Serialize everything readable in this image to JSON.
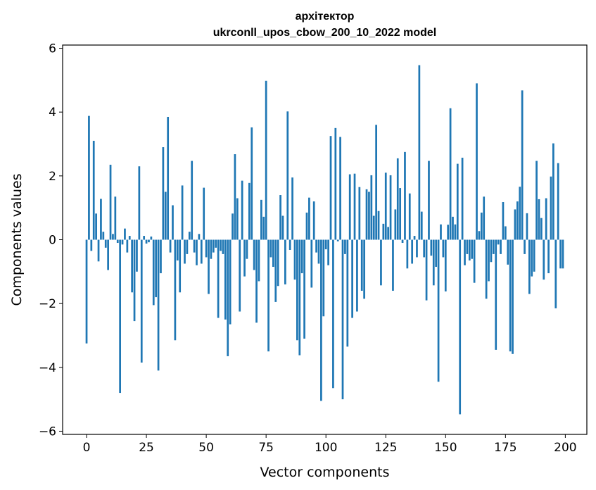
{
  "chart_data": {
    "type": "bar",
    "title": "архітектор",
    "subtitle": "ukrconll_upos_cbow_200_10_2022 model",
    "xlabel": "Vector components",
    "ylabel": "Components values",
    "xlim": [
      -10,
      209
    ],
    "ylim": [
      -6.1,
      6.1
    ],
    "xticks": [
      0,
      25,
      50,
      75,
      100,
      125,
      150,
      175,
      200
    ],
    "yticks": [
      -6,
      -4,
      -2,
      0,
      2,
      4,
      6
    ],
    "ytick_labels": [
      "−6",
      "−4",
      "−2",
      "0",
      "2",
      "4",
      "6"
    ],
    "bar_color": "#1f77b4",
    "values": [
      -3.25,
      3.88,
      -0.35,
      3.1,
      0.82,
      -0.68,
      1.28,
      0.25,
      -0.25,
      -0.95,
      2.35,
      0.18,
      1.35,
      -0.1,
      -4.8,
      -0.15,
      0.35,
      -0.4,
      0.12,
      -1.65,
      -2.55,
      -1.0,
      2.3,
      -3.85,
      0.12,
      -0.12,
      -0.08,
      0.1,
      -2.05,
      -1.8,
      -4.1,
      -1.05,
      2.9,
      1.5,
      3.85,
      -0.4,
      1.08,
      -3.15,
      -0.65,
      -1.65,
      1.7,
      -0.75,
      -0.45,
      0.25,
      2.47,
      -0.4,
      -0.8,
      0.18,
      -0.75,
      1.63,
      -0.55,
      -1.7,
      -0.6,
      -0.4,
      -0.25,
      -2.45,
      -0.35,
      -0.45,
      -2.5,
      -3.65,
      -2.65,
      0.82,
      2.68,
      1.3,
      -2.25,
      1.85,
      -1.15,
      -0.6,
      1.78,
      3.52,
      -0.95,
      -2.6,
      -1.3,
      1.25,
      0.72,
      4.98,
      -3.5,
      -0.55,
      -0.85,
      -1.95,
      -1.45,
      1.4,
      0.75,
      -1.4,
      4.02,
      -0.32,
      1.95,
      -1.25,
      -3.15,
      -3.62,
      -1.05,
      -3.1,
      0.85,
      1.32,
      -1.5,
      1.2,
      -0.4,
      -0.75,
      -5.05,
      -2.4,
      -0.3,
      -0.8,
      3.25,
      -4.65,
      3.5,
      -0.05,
      3.22,
      -5.0,
      -0.45,
      -3.35,
      2.05,
      -2.45,
      2.07,
      -2.25,
      1.65,
      -1.6,
      -1.85,
      1.58,
      1.5,
      2.02,
      0.75,
      3.6,
      0.9,
      -1.43,
      0.5,
      2.1,
      0.4,
      2.02,
      -1.6,
      0.95,
      2.55,
      1.62,
      -0.1,
      2.75,
      -0.9,
      1.45,
      -0.75,
      0.12,
      -0.55,
      5.47,
      0.88,
      -0.55,
      -1.9,
      2.47,
      -0.5,
      -1.43,
      -0.85,
      -4.45,
      0.48,
      -0.55,
      -1.62,
      0.47,
      4.12,
      0.72,
      0.48,
      2.38,
      -5.47,
      2.57,
      -0.8,
      -0.45,
      -0.65,
      -0.6,
      -1.35,
      4.9,
      0.27,
      0.85,
      1.35,
      -1.85,
      -1.3,
      -0.7,
      -0.45,
      -3.45,
      -0.15,
      -0.45,
      1.18,
      0.42,
      -0.78,
      -3.5,
      -3.58,
      0.95,
      1.2,
      1.66,
      4.68,
      -0.45,
      0.83,
      -1.7,
      -1.15,
      -1.0,
      2.47,
      1.27,
      0.68,
      -1.25,
      1.3,
      -1.05,
      1.98,
      3.02,
      -2.15,
      2.4,
      -0.9,
      -0.9
    ]
  }
}
